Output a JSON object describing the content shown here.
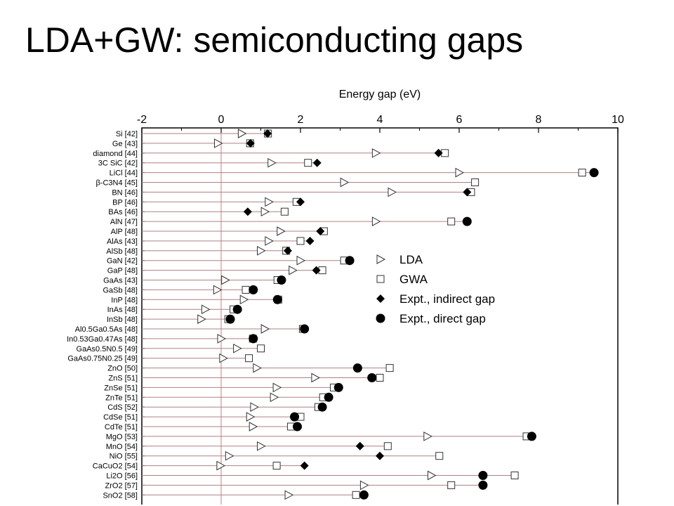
{
  "slide": {
    "title": "LDA+GW: semiconducting gaps"
  },
  "chart_data": {
    "type": "scatter",
    "orientation": "horizontal",
    "title": "",
    "xlabel": "Energy gap (eV)",
    "ylabel": "",
    "xlim": [
      -2,
      10
    ],
    "x_ticks": [
      -2,
      0,
      2,
      4,
      6,
      8,
      10
    ],
    "x_axis_position": "top",
    "reference_line": 0,
    "grid": false,
    "legend_position": "right-middle",
    "series": [
      {
        "key": "lda",
        "name": "LDA",
        "marker": "open-triangle-right",
        "color": "#000000"
      },
      {
        "key": "gw",
        "name": "GWA",
        "marker": "open-square",
        "color": "#000000"
      },
      {
        "key": "expt_ind",
        "name": "Expt., indirect gap",
        "marker": "filled-diamond",
        "color": "#000000"
      },
      {
        "key": "expt_dir",
        "name": "Expt., direct gap",
        "marker": "filled-circle",
        "color": "#000000"
      }
    ],
    "connector_color": "#b08080",
    "rows": [
      {
        "label": "Si [42]",
        "lda": 0.52,
        "gw": 1.18,
        "expt_ind": 1.17,
        "expt_dir": null
      },
      {
        "label": "Ge [43]",
        "lda": -0.08,
        "gw": 0.73,
        "expt_ind": 0.74,
        "expt_dir": null
      },
      {
        "label": "diamond [44]",
        "lda": 3.9,
        "gw": 5.64,
        "expt_ind": 5.48,
        "expt_dir": null
      },
      {
        "label": "3C SiC [42]",
        "lda": 1.27,
        "gw": 2.19,
        "expt_ind": 2.42,
        "expt_dir": null
      },
      {
        "label": "LiCl [44]",
        "lda": 6.0,
        "gw": 9.1,
        "expt_ind": null,
        "expt_dir": 9.4
      },
      {
        "label": "β-C3N4 [45]",
        "lda": 3.1,
        "gw": 6.4,
        "expt_ind": null,
        "expt_dir": null
      },
      {
        "label": "BN [46]",
        "lda": 4.3,
        "gw": 6.3,
        "expt_ind": 6.2,
        "expt_dir": null
      },
      {
        "label": "BP [46]",
        "lda": 1.2,
        "gw": 1.9,
        "expt_ind": 2.0,
        "expt_dir": null
      },
      {
        "label": "BAs [46]",
        "lda": 1.1,
        "gw": 1.6,
        "expt_ind": 0.67,
        "expt_dir": null
      },
      {
        "label": "AlN [47]",
        "lda": 3.9,
        "gw": 5.8,
        "expt_ind": null,
        "expt_dir": 6.2
      },
      {
        "label": "AlP [48]",
        "lda": 1.5,
        "gw": 2.59,
        "expt_ind": 2.5,
        "expt_dir": null
      },
      {
        "label": "AlAs [43]",
        "lda": 1.2,
        "gw": 2.0,
        "expt_ind": 2.24,
        "expt_dir": null
      },
      {
        "label": "AlSb [48]",
        "lda": 1.0,
        "gw": 1.64,
        "expt_ind": 1.68,
        "expt_dir": null
      },
      {
        "label": "GaN [42]",
        "lda": 2.0,
        "gw": 3.1,
        "expt_ind": null,
        "expt_dir": 3.24
      },
      {
        "label": "GaP [48]",
        "lda": 1.8,
        "gw": 2.55,
        "expt_ind": 2.4,
        "expt_dir": null
      },
      {
        "label": "GaAs [43]",
        "lda": 0.1,
        "gw": 1.42,
        "expt_ind": null,
        "expt_dir": 1.52
      },
      {
        "label": "GaSb [48]",
        "lda": -0.1,
        "gw": 0.62,
        "expt_ind": null,
        "expt_dir": 0.81
      },
      {
        "label": "InP [48]",
        "lda": 0.57,
        "gw": 1.44,
        "expt_ind": null,
        "expt_dir": 1.42
      },
      {
        "label": "InAs [48]",
        "lda": -0.4,
        "gw": 0.31,
        "expt_ind": null,
        "expt_dir": 0.41
      },
      {
        "label": "InSb [48]",
        "lda": -0.5,
        "gw": 0.18,
        "expt_ind": null,
        "expt_dir": 0.23
      },
      {
        "label": "Al0.5Ga0.5As [48]",
        "lda": 1.1,
        "gw": 2.06,
        "expt_ind": null,
        "expt_dir": 2.1
      },
      {
        "label": "In0.53Ga0.47As [48]",
        "lda": 0.0,
        "gw": 0.8,
        "expt_ind": null,
        "expt_dir": 0.81
      },
      {
        "label": "GaAs0.5N0.5 [49]",
        "lda": 0.4,
        "gw": 1.0,
        "expt_ind": null,
        "expt_dir": null
      },
      {
        "label": "GaAs0.75N0.25 [49]",
        "lda": 0.05,
        "gw": 0.7,
        "expt_ind": null,
        "expt_dir": null
      },
      {
        "label": "ZnO [50]",
        "lda": 0.9,
        "gw": 4.25,
        "expt_ind": null,
        "expt_dir": 3.44
      },
      {
        "label": "ZnS [51]",
        "lda": 2.37,
        "gw": 4.0,
        "expt_ind": null,
        "expt_dir": 3.8
      },
      {
        "label": "ZnSe [51]",
        "lda": 1.4,
        "gw": 2.84,
        "expt_ind": null,
        "expt_dir": 2.96
      },
      {
        "label": "ZnTe [51]",
        "lda": 1.33,
        "gw": 2.57,
        "expt_ind": null,
        "expt_dir": 2.71
      },
      {
        "label": "CdS [52]",
        "lda": 0.83,
        "gw": 2.45,
        "expt_ind": null,
        "expt_dir": 2.55
      },
      {
        "label": "CdSe [51]",
        "lda": 0.73,
        "gw": 2.0,
        "expt_ind": null,
        "expt_dir": 1.85
      },
      {
        "label": "CdTe [51]",
        "lda": 0.8,
        "gw": 1.76,
        "expt_ind": null,
        "expt_dir": 1.92
      },
      {
        "label": "MgO [53]",
        "lda": 5.2,
        "gw": 7.7,
        "expt_ind": null,
        "expt_dir": 7.83
      },
      {
        "label": "MnO [54]",
        "lda": 1.0,
        "gw": 4.2,
        "expt_ind": 3.5,
        "expt_dir": null
      },
      {
        "label": "NiO [55]",
        "lda": 0.2,
        "gw": 5.5,
        "expt_ind": 4.0,
        "expt_dir": null
      },
      {
        "label": "CaCuO2 [54]",
        "lda": -0.02,
        "gw": 1.4,
        "expt_ind": 2.1,
        "expt_dir": null
      },
      {
        "label": "Li2O [56]",
        "lda": 5.3,
        "gw": 7.4,
        "expt_ind": null,
        "expt_dir": 6.6
      },
      {
        "label": "ZrO2 [57]",
        "lda": 3.6,
        "gw": 5.8,
        "expt_ind": null,
        "expt_dir": 6.6
      },
      {
        "label": "SnO2 [58]",
        "lda": 1.7,
        "gw": 3.4,
        "expt_ind": null,
        "expt_dir": 3.6
      }
    ]
  }
}
